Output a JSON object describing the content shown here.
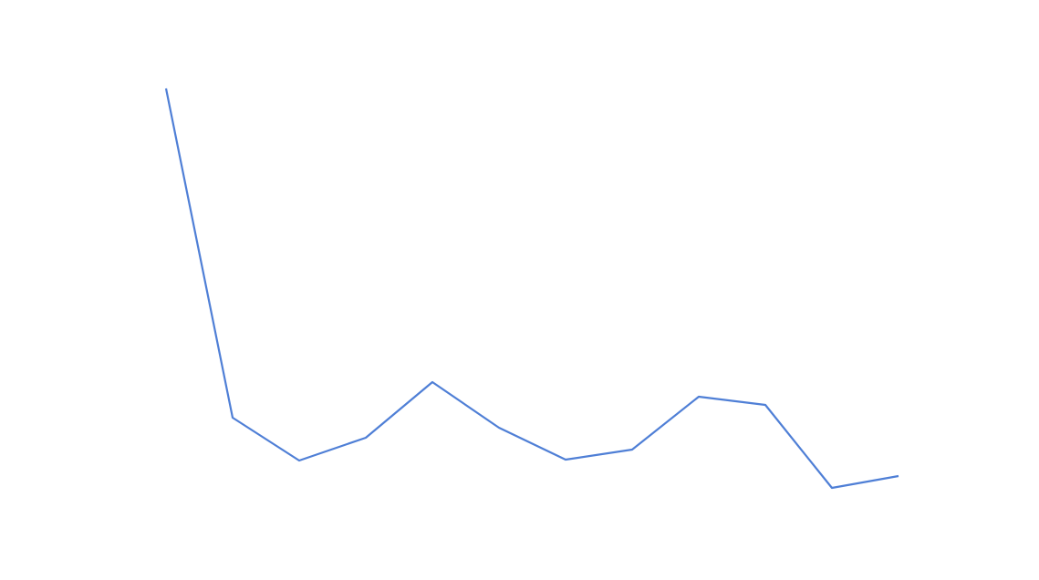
{
  "chart_data": {
    "type": "line",
    "categories": [
      null,
      null,
      null,
      null,
      null,
      null,
      null,
      null,
      null,
      null,
      null,
      null
    ],
    "series": [
      {
        "color": "#4f7fd6",
        "values": [
          539,
          178,
          131,
          156,
          217,
          167,
          132,
          143,
          201,
          192,
          101,
          114
        ]
      }
    ]
  }
}
